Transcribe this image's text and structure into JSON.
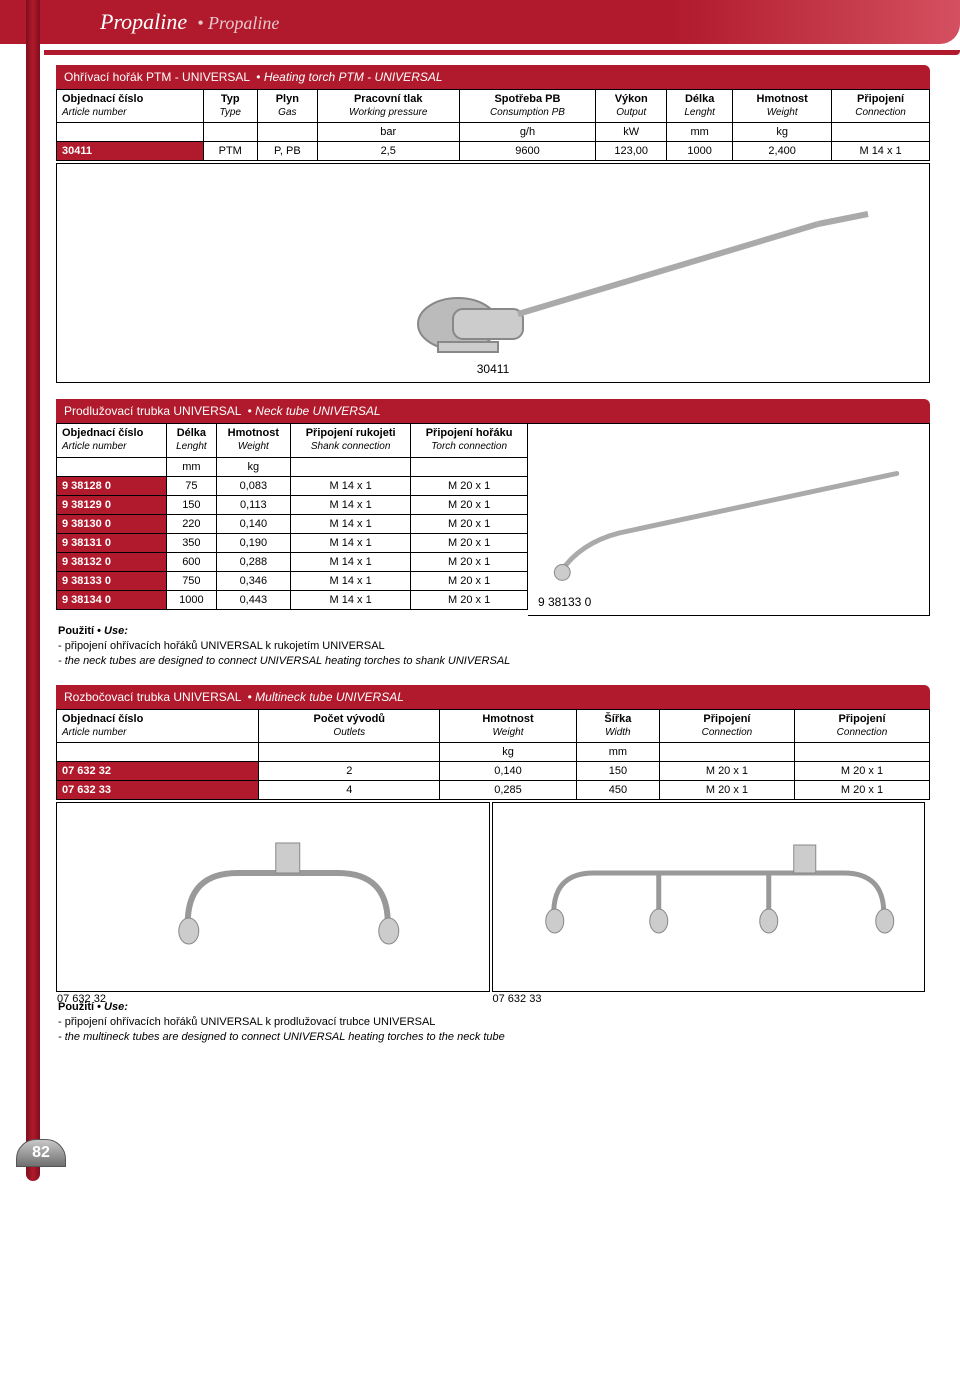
{
  "page": {
    "header_main": "Propaline",
    "header_sep": "•",
    "header_sub": "Propaline",
    "number": "82"
  },
  "section1": {
    "title_cz": "Ohřívací hořák PTM - UNIVERSAL",
    "title_en": "Heating torch PTM - UNIVERSAL",
    "cols": [
      {
        "cz": "Objednací číslo",
        "en": "Article number"
      },
      {
        "cz": "Typ",
        "en": "Type"
      },
      {
        "cz": "Plyn",
        "en": "Gas"
      },
      {
        "cz": "Pracovní tlak",
        "en": "Working pressure"
      },
      {
        "cz": "Spotřeba PB",
        "en": "Consumption PB"
      },
      {
        "cz": "Výkon",
        "en": "Output"
      },
      {
        "cz": "Délka",
        "en": "Lenght"
      },
      {
        "cz": "Hmotnost",
        "en": "Weight"
      },
      {
        "cz": "Připojení",
        "en": "Connection"
      }
    ],
    "units": [
      "",
      "",
      "",
      "bar",
      "g/h",
      "kW",
      "mm",
      "kg",
      ""
    ],
    "rows": [
      [
        "30411",
        "PTM",
        "P, PB",
        "2,5",
        "9600",
        "123,00",
        "1000",
        "2,400",
        "M 14 x 1"
      ]
    ],
    "image_caption": "30411"
  },
  "section2": {
    "title_cz": "Prodlužovací trubka UNIVERSAL",
    "title_en": "Neck tube UNIVERSAL",
    "cols": [
      {
        "cz": "Objednací číslo",
        "en": "Article number"
      },
      {
        "cz": "Délka",
        "en": "Lenght"
      },
      {
        "cz": "Hmotnost",
        "en": "Weight"
      },
      {
        "cz": "Připojení rukojeti",
        "en": "Shank connection"
      },
      {
        "cz": "Připojení hořáku",
        "en": "Torch connection"
      }
    ],
    "units": [
      "",
      "mm",
      "kg",
      "",
      ""
    ],
    "rows": [
      [
        "9 38128 0",
        "75",
        "0,083",
        "M 14 x 1",
        "M 20 x 1"
      ],
      [
        "9 38129 0",
        "150",
        "0,113",
        "M 14 x 1",
        "M 20 x 1"
      ],
      [
        "9 38130 0",
        "220",
        "0,140",
        "M 14 x 1",
        "M 20 x 1"
      ],
      [
        "9 38131 0",
        "350",
        "0,190",
        "M 14 x 1",
        "M 20 x 1"
      ],
      [
        "9 38132 0",
        "600",
        "0,288",
        "M 14 x 1",
        "M 20 x 1"
      ],
      [
        "9 38133 0",
        "750",
        "0,346",
        "M 14 x 1",
        "M 20 x 1"
      ],
      [
        "9 38134 0",
        "1000",
        "0,443",
        "M 14 x 1",
        "M 20 x 1"
      ]
    ],
    "image_caption": "9 38133 0",
    "use_label_cz": "Použití",
    "use_label_en": "Use:",
    "use_cz": "- připojení ohřívacích hořáků UNIVERSAL k rukojetím UNIVERSAL",
    "use_en": "- the neck tubes are designed to connect UNIVERSAL heating torches to shank UNIVERSAL"
  },
  "section3": {
    "title_cz": "Rozbočovací trubka UNIVERSAL",
    "title_en": "Multineck tube UNIVERSAL",
    "cols": [
      {
        "cz": "Objednací číslo",
        "en": "Article number"
      },
      {
        "cz": "Počet vývodů",
        "en": "Outlets"
      },
      {
        "cz": "Hmotnost",
        "en": "Weight"
      },
      {
        "cz": "Šířka",
        "en": "Width"
      },
      {
        "cz": "Připojení",
        "en": "Connection"
      },
      {
        "cz": "Připojení",
        "en": "Connection"
      }
    ],
    "units": [
      "",
      "",
      "kg",
      "mm",
      "",
      ""
    ],
    "rows": [
      [
        "07 632 32",
        "2",
        "0,140",
        "150",
        "M 20 x 1",
        "M 20 x 1"
      ],
      [
        "07 632 33",
        "4",
        "0,285",
        "450",
        "M 20 x 1",
        "M 20 x 1"
      ]
    ],
    "image_caption_1": "07 632 32",
    "image_caption_2": "07 632 33",
    "use_label_cz": "Použití",
    "use_label_en": "Use:",
    "use_cz": "- připojení ohřívacích hořáků UNIVERSAL k prodlužovací trubce UNIVERSAL",
    "use_en": "- the multineck tubes are designed to connect UNIVERSAL heating torches to the neck tube"
  },
  "style": {
    "brand_red": "#b01a2c",
    "dark_red": "#810d1d",
    "text": "#000000",
    "white": "#ffffff",
    "table_border": "#000000"
  }
}
